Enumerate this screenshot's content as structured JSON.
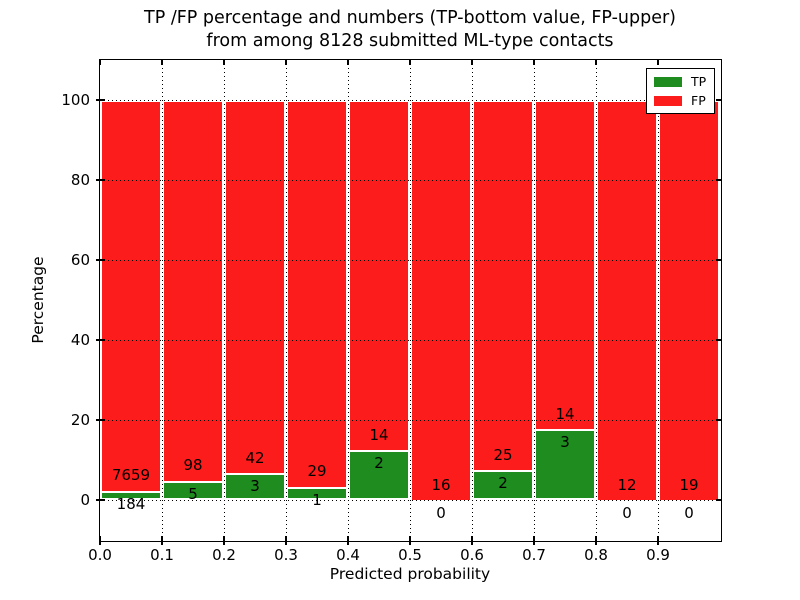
{
  "title": {
    "line1": "TP /FP percentage and numbers (TP-bottom value, FP-upper)",
    "line2": "from among 8128 submitted ML-type contacts"
  },
  "chart_data": {
    "type": "bar",
    "subtype": "stacked-percentage-histogram",
    "title": "TP /FP percentage and numbers (TP-bottom value, FP-upper)\nfrom among 8128 submitted ML-type contacts",
    "xlabel": "Predicted probability",
    "ylabel": "Percentage",
    "xlim": [
      0.0,
      1.0
    ],
    "ylim": [
      -10,
      110
    ],
    "grid": "dotted",
    "total_contacts": 8128,
    "bin_width": 0.1,
    "bin_starts": [
      0.0,
      0.1,
      0.2,
      0.3,
      0.4,
      0.5,
      0.6,
      0.7,
      0.8,
      0.9
    ],
    "x_tick_values": [
      0.0,
      0.1,
      0.2,
      0.3,
      0.4,
      0.5,
      0.6,
      0.7,
      0.8,
      0.9
    ],
    "x_tick_labels": [
      "0.0",
      "0.1",
      "0.2",
      "0.3",
      "0.4",
      "0.5",
      "0.6",
      "0.7",
      "0.8",
      "0.9"
    ],
    "y_tick_values": [
      0,
      20,
      40,
      60,
      80,
      100
    ],
    "y_tick_labels": [
      "0",
      "20",
      "40",
      "60",
      "80",
      "100"
    ],
    "series": [
      {
        "name": "TP",
        "color": "#1e8c1e",
        "counts": [
          184,
          5,
          3,
          1,
          2,
          0,
          2,
          3,
          0,
          0
        ]
      },
      {
        "name": "FP",
        "color": "#fd1c1c",
        "counts": [
          7659,
          98,
          42,
          29,
          14,
          16,
          25,
          14,
          12,
          19
        ]
      }
    ],
    "legend": {
      "position": "upper-right",
      "items": [
        {
          "label": "TP",
          "color": "#1e8c1e"
        },
        {
          "label": "FP",
          "color": "#fd1c1c"
        }
      ]
    },
    "colors": {
      "bar_edge": "#ffffff",
      "grid": "#000000",
      "background": "#ffffff"
    }
  }
}
